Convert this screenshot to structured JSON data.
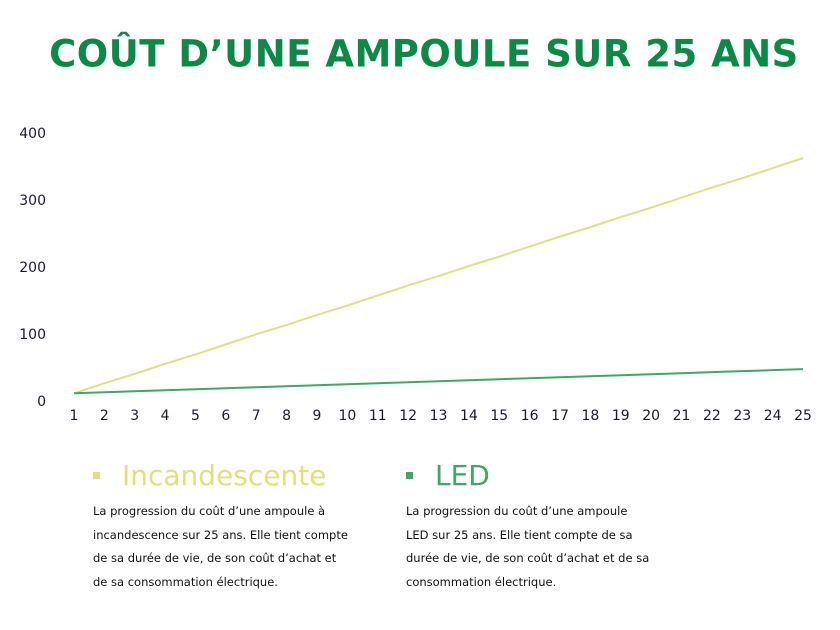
{
  "chart_data": {
    "type": "line",
    "title": "COÛT D’UNE AMPOULE SUR 25 ANS",
    "categories": [
      "1",
      "2",
      "3",
      "4",
      "5",
      "6",
      "7",
      "8",
      "9",
      "10",
      "11",
      "12",
      "13",
      "14",
      "15",
      "16",
      "17",
      "18",
      "19",
      "20",
      "21",
      "22",
      "23",
      "24",
      "25"
    ],
    "series": [
      {
        "name": "Incandescente",
        "color": "#dfe27c",
        "description": "La progression du coût d’une ampoule à incandescence sur 25 ans. Elle tient compte de sa durée de vie, de son coût d’achat et de sa consommation électrique.",
        "values": [
          13,
          28,
          42,
          57,
          71,
          86,
          101,
          115,
          130,
          144,
          159,
          174,
          188,
          203,
          217,
          232,
          247,
          261,
          276,
          290,
          305,
          320,
          334,
          349,
          364
        ]
      },
      {
        "name": "LED",
        "color": "#3da868",
        "description": "La progression du coût d’une ampoule LED sur 25 ans. Elle tient compte de sa durée de vie, de son coût d’achat et de sa consommation électrique.",
        "values": [
          13,
          14.5,
          16,
          17.5,
          19,
          20.5,
          22,
          23.5,
          25,
          26.5,
          28,
          29.5,
          31,
          32.5,
          34,
          35.5,
          37,
          38.5,
          40,
          41.5,
          43,
          44.5,
          46,
          47.5,
          49
        ]
      }
    ],
    "ylim": [
      0,
      400
    ],
    "yticks": [
      0,
      100,
      200,
      300,
      400
    ],
    "grid": false,
    "title_color": "#0b8a47"
  }
}
